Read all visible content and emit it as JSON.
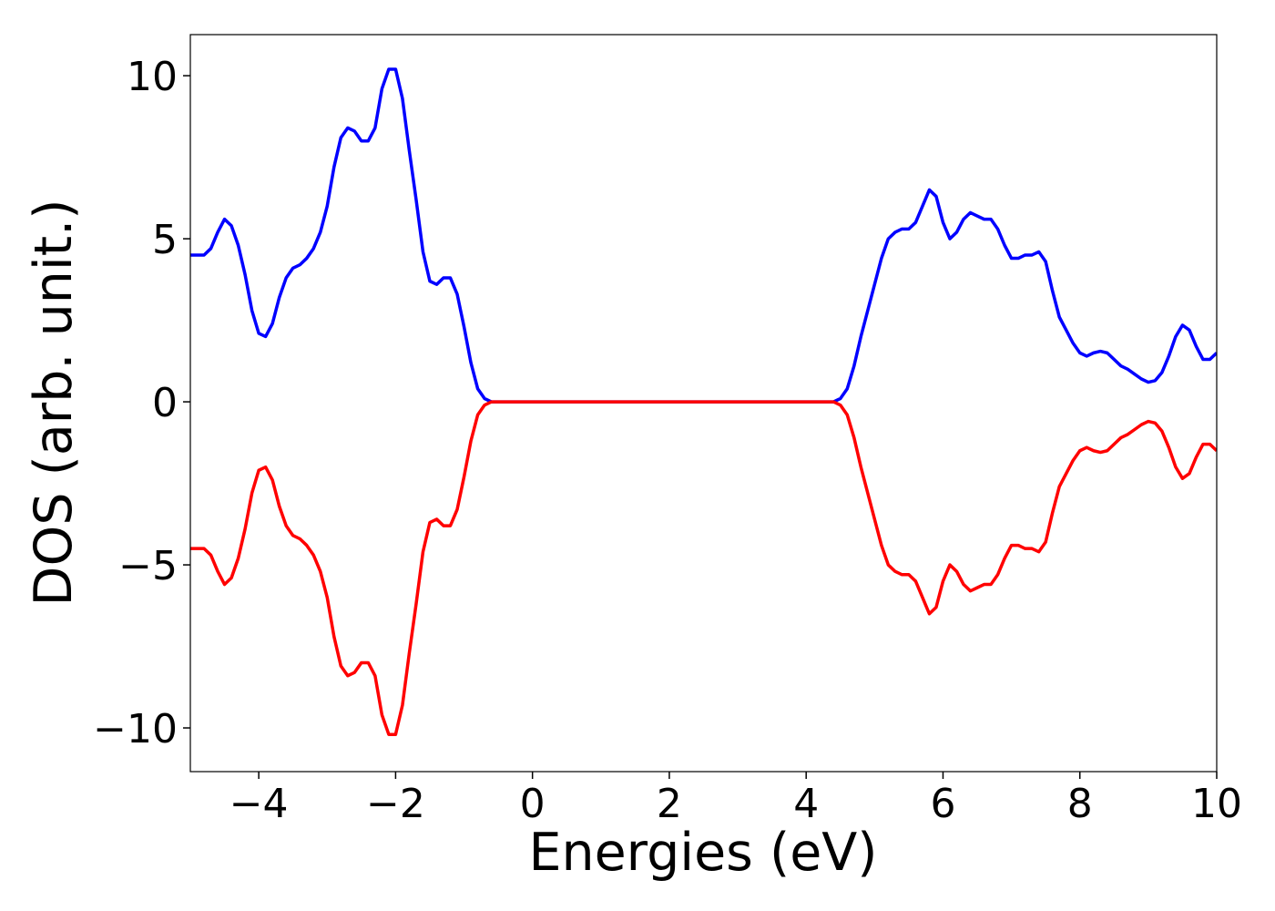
{
  "chart_data": {
    "type": "line",
    "xlabel": "Energies (eV)",
    "ylabel": "DOS (arb. unit.)",
    "x": [
      -5,
      -4.8,
      -4.7,
      -4.6,
      -4.5,
      -4.4,
      -4.3,
      -4.2,
      -4.1,
      -4.0,
      -3.9,
      -3.8,
      -3.7,
      -3.6,
      -3.5,
      -3.4,
      -3.3,
      -3.2,
      -3.1,
      -3.0,
      -2.9,
      -2.8,
      -2.7,
      -2.6,
      -2.5,
      -2.4,
      -2.3,
      -2.2,
      -2.1,
      -2.0,
      -1.9,
      -1.8,
      -1.7,
      -1.6,
      -1.5,
      -1.4,
      -1.3,
      -1.2,
      -1.1,
      -1.0,
      -0.9,
      -0.8,
      -0.7,
      -0.6,
      -0.5,
      0,
      1,
      2,
      3,
      4,
      4.4,
      4.5,
      4.6,
      4.7,
      4.8,
      4.9,
      5.0,
      5.1,
      5.2,
      5.3,
      5.4,
      5.5,
      5.6,
      5.7,
      5.8,
      5.9,
      6.0,
      6.1,
      6.2,
      6.3,
      6.4,
      6.5,
      6.6,
      6.7,
      6.8,
      6.9,
      7.0,
      7.1,
      7.2,
      7.3,
      7.4,
      7.5,
      7.6,
      7.7,
      7.8,
      7.9,
      8.0,
      8.1,
      8.2,
      8.3,
      8.4,
      8.5,
      8.6,
      8.7,
      8.8,
      8.9,
      9.0,
      9.1,
      9.2,
      9.3,
      9.4,
      9.5,
      9.6,
      9.7,
      9.8,
      9.9,
      10.0
    ],
    "series": [
      {
        "color": "#0000ff",
        "values": [
          4.5,
          4.5,
          4.7,
          5.2,
          5.6,
          5.4,
          4.8,
          3.9,
          2.8,
          2.1,
          2.0,
          2.4,
          3.2,
          3.8,
          4.1,
          4.2,
          4.4,
          4.7,
          5.2,
          6.0,
          7.2,
          8.1,
          8.4,
          8.3,
          8.0,
          8.0,
          8.4,
          9.6,
          10.2,
          10.2,
          9.3,
          7.7,
          6.2,
          4.6,
          3.7,
          3.6,
          3.8,
          3.8,
          3.3,
          2.3,
          1.2,
          0.4,
          0.1,
          0,
          0,
          0,
          0,
          0,
          0,
          0,
          0,
          0.1,
          0.4,
          1.1,
          2.0,
          2.8,
          3.6,
          4.4,
          5.0,
          5.2,
          5.3,
          5.3,
          5.5,
          6.0,
          6.5,
          6.3,
          5.5,
          5.0,
          5.2,
          5.6,
          5.8,
          5.7,
          5.6,
          5.6,
          5.3,
          4.8,
          4.4,
          4.4,
          4.5,
          4.5,
          4.6,
          4.3,
          3.4,
          2.6,
          2.2,
          1.8,
          1.5,
          1.4,
          1.5,
          1.55,
          1.5,
          1.3,
          1.1,
          1.0,
          0.85,
          0.7,
          0.6,
          0.65,
          0.9,
          1.4,
          2.0,
          2.35,
          2.2,
          1.7,
          1.3,
          1.3,
          1.5
        ]
      },
      {
        "color": "#ff0000",
        "values": [
          -4.5,
          -4.5,
          -4.7,
          -5.2,
          -5.6,
          -5.4,
          -4.8,
          -3.9,
          -2.8,
          -2.1,
          -2.0,
          -2.4,
          -3.2,
          -3.8,
          -4.1,
          -4.2,
          -4.4,
          -4.7,
          -5.2,
          -6.0,
          -7.2,
          -8.1,
          -8.4,
          -8.3,
          -8.0,
          -8.0,
          -8.4,
          -9.6,
          -10.2,
          -10.2,
          -9.3,
          -7.7,
          -6.2,
          -4.6,
          -3.7,
          -3.6,
          -3.8,
          -3.8,
          -3.3,
          -2.3,
          -1.2,
          -0.4,
          -0.1,
          0,
          0,
          0,
          0,
          0,
          0,
          0,
          0,
          -0.1,
          -0.4,
          -1.1,
          -2.0,
          -2.8,
          -3.6,
          -4.4,
          -5.0,
          -5.2,
          -5.3,
          -5.3,
          -5.5,
          -6.0,
          -6.5,
          -6.3,
          -5.5,
          -5.0,
          -5.2,
          -5.6,
          -5.8,
          -5.7,
          -5.6,
          -5.6,
          -5.3,
          -4.8,
          -4.4,
          -4.4,
          -4.5,
          -4.5,
          -4.6,
          -4.3,
          -3.4,
          -2.6,
          -2.2,
          -1.8,
          -1.5,
          -1.4,
          -1.5,
          -1.55,
          -1.5,
          -1.3,
          -1.1,
          -1.0,
          -0.85,
          -0.7,
          -0.6,
          -0.65,
          -0.9,
          -1.4,
          -2.0,
          -2.35,
          -2.2,
          -1.7,
          -1.3,
          -1.3,
          -1.5
        ]
      }
    ],
    "xlim": [
      -5,
      10
    ],
    "xticks": [
      {
        "value": -4,
        "label": "−4"
      },
      {
        "value": -2,
        "label": "−2"
      },
      0,
      2,
      4,
      6,
      8,
      10
    ],
    "ylim": [
      -11.34,
      11.26
    ],
    "yticks": [
      {
        "value": -10,
        "label": "−10"
      },
      {
        "value": -5,
        "label": "−5"
      },
      0,
      5,
      10
    ],
    "grid": false
  }
}
